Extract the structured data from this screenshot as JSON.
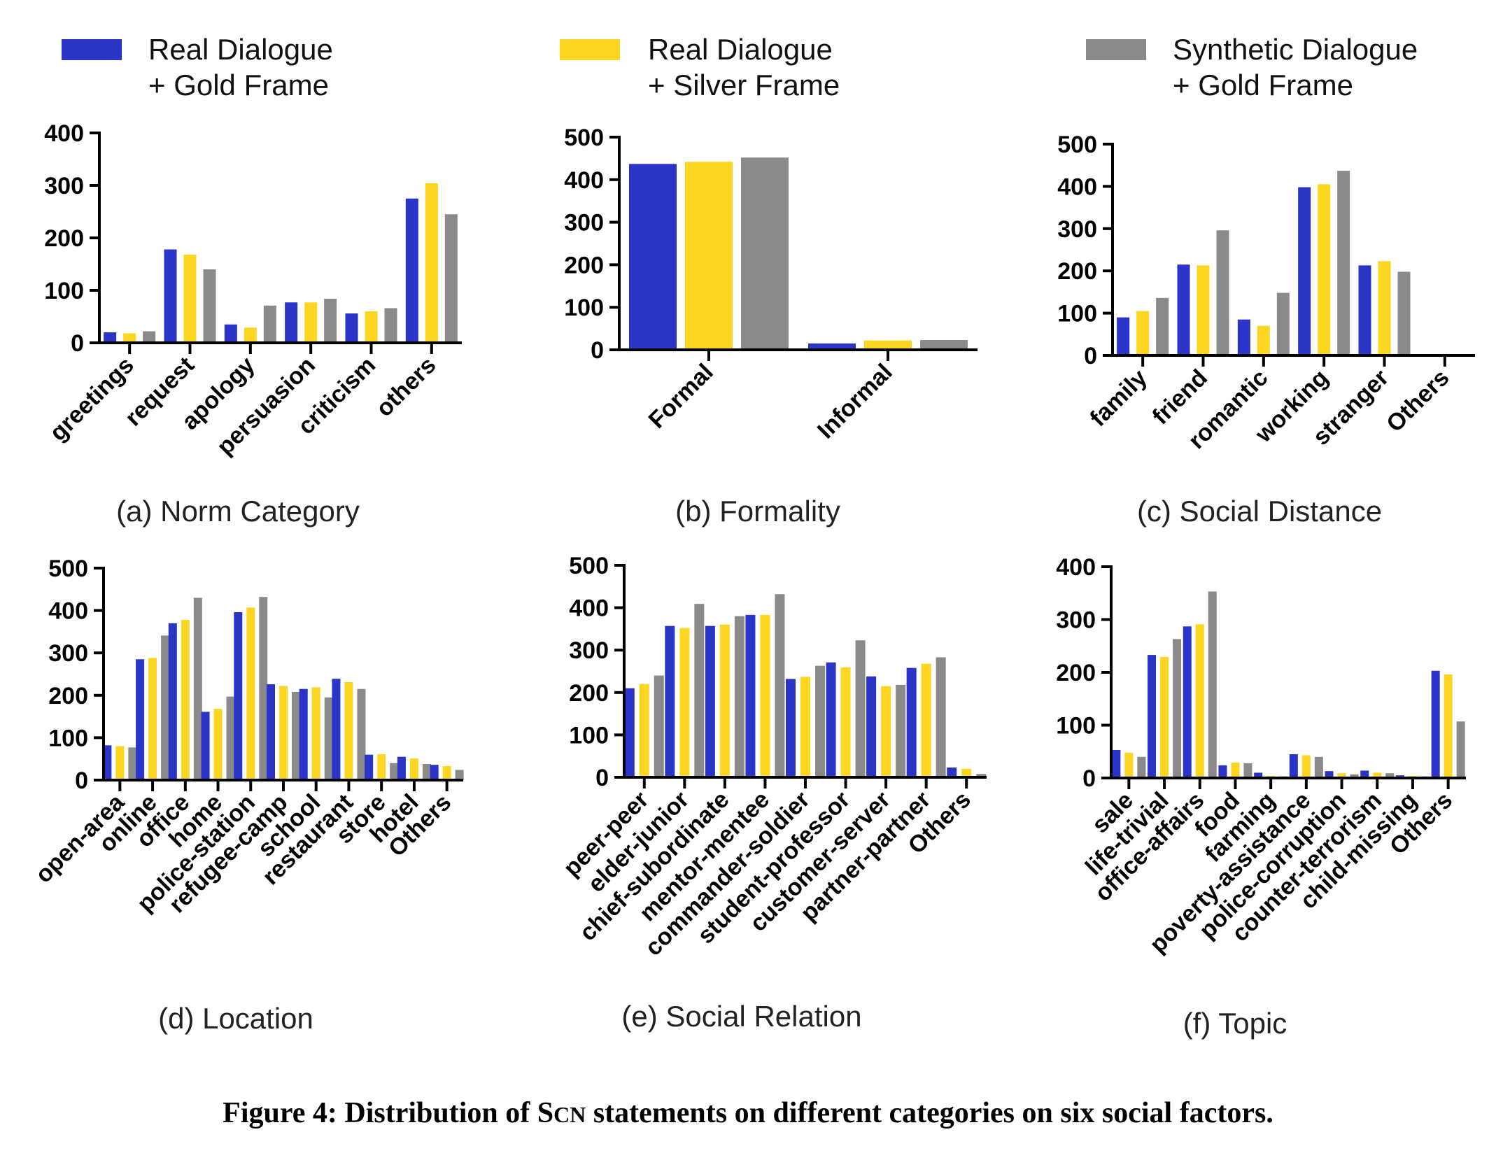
{
  "legend": [
    {
      "line1": "Real Dialogue",
      "line2": "+ Gold Frame",
      "color": "#2a35c8"
    },
    {
      "line1": "Real Dialogue",
      "line2": "+ Silver Frame",
      "color": "#fdd622"
    },
    {
      "line1": "Synthetic Dialogue",
      "line2": "+ Gold Frame",
      "color": "#8a8a8a"
    }
  ],
  "caption": {
    "prefix": "Figure 4: Distribution of ",
    "scn_first": "S",
    "scn_rest": "CN",
    "suffix": " statements on different categories on six social factors."
  },
  "chart_data": [
    {
      "type": "bar",
      "subcaption": "(a) Norm Category",
      "categories": [
        "greetings",
        "request",
        "apology",
        "persuasion",
        "criticism",
        "others"
      ],
      "ylim": [
        0,
        400
      ],
      "yticks": [
        0,
        100,
        200,
        300,
        400
      ],
      "series": [
        {
          "values": [
            20,
            178,
            35,
            77,
            56,
            275
          ]
        },
        {
          "values": [
            18,
            168,
            29,
            77,
            60,
            304
          ]
        },
        {
          "values": [
            22,
            140,
            71,
            84,
            66,
            245
          ]
        }
      ]
    },
    {
      "type": "bar",
      "subcaption": "(b) Formality",
      "categories": [
        "Formal",
        "Informal"
      ],
      "ylim": [
        0,
        500
      ],
      "yticks": [
        0,
        100,
        200,
        300,
        400,
        500
      ],
      "series": [
        {
          "values": [
            437,
            15
          ]
        },
        {
          "values": [
            442,
            22
          ]
        },
        {
          "values": [
            452,
            23
          ]
        }
      ]
    },
    {
      "type": "bar",
      "subcaption": "(c) Social Distance",
      "categories": [
        "family",
        "friend",
        "romantic",
        "working",
        "stranger",
        "Others"
      ],
      "ylim": [
        0,
        500
      ],
      "yticks": [
        0,
        100,
        200,
        300,
        400,
        500
      ],
      "series": [
        {
          "values": [
            90,
            215,
            85,
            398,
            213,
            0
          ]
        },
        {
          "values": [
            105,
            213,
            70,
            405,
            223,
            2
          ]
        },
        {
          "values": [
            136,
            296,
            148,
            437,
            198,
            3
          ]
        }
      ]
    },
    {
      "type": "bar",
      "subcaption": "(d) Location",
      "categories": [
        "open-area",
        "online",
        "office",
        "home",
        "police-station",
        "refugee-camp",
        "school",
        "restaurant",
        "store",
        "hotel",
        "Others"
      ],
      "ylim": [
        0,
        500
      ],
      "yticks": [
        0,
        100,
        200,
        300,
        400,
        500
      ],
      "series": [
        {
          "values": [
            82,
            285,
            370,
            161,
            396,
            226,
            215,
            239,
            60,
            55,
            36
          ]
        },
        {
          "values": [
            80,
            288,
            378,
            168,
            407,
            222,
            219,
            231,
            61,
            51,
            33
          ]
        },
        {
          "values": [
            77,
            341,
            430,
            197,
            432,
            208,
            195,
            215,
            40,
            38,
            24
          ]
        }
      ]
    },
    {
      "type": "bar",
      "subcaption": "(e) Social Relation",
      "categories": [
        "peer-peer",
        "elder-junior",
        "chief-subordinate",
        "mentor-mentee",
        "commander-soldier",
        "student-professor",
        "customer-server",
        "partner-partner",
        "Others"
      ],
      "ylim": [
        0,
        500
      ],
      "yticks": [
        0,
        100,
        200,
        300,
        400,
        500
      ],
      "series": [
        {
          "values": [
            210,
            357,
            357,
            383,
            232,
            271,
            238,
            258,
            23
          ]
        },
        {
          "values": [
            220,
            352,
            360,
            383,
            237,
            259,
            215,
            268,
            20
          ]
        },
        {
          "values": [
            240,
            409,
            380,
            432,
            263,
            323,
            218,
            283,
            8
          ]
        }
      ]
    },
    {
      "type": "bar",
      "subcaption": "(f) Topic",
      "categories": [
        "sale",
        "life-trivial",
        "office-affairs",
        "food",
        "farming",
        "poverty-assistance",
        "police-corruption",
        "counter-terrorism",
        "child-missing",
        "Others"
      ],
      "ylim": [
        0,
        400
      ],
      "yticks": [
        0,
        100,
        200,
        300,
        400
      ],
      "series": [
        {
          "values": [
            53,
            233,
            287,
            24,
            10,
            45,
            13,
            14,
            5,
            203
          ]
        },
        {
          "values": [
            48,
            229,
            291,
            29,
            4,
            43,
            9,
            10,
            4,
            196
          ]
        },
        {
          "values": [
            40,
            263,
            353,
            28,
            3,
            40,
            7,
            9,
            3,
            107
          ]
        }
      ]
    }
  ]
}
